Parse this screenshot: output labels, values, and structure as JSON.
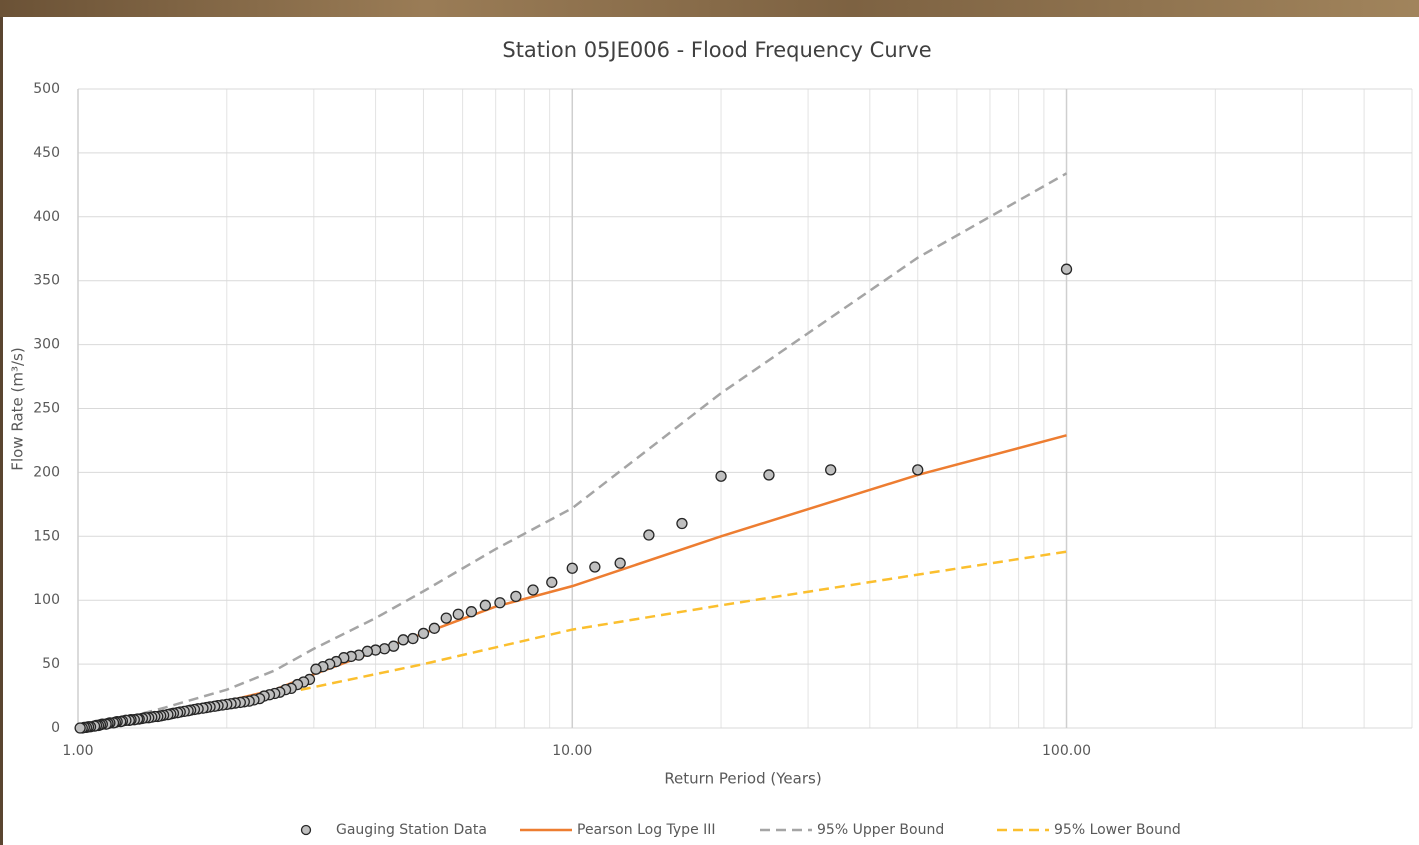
{
  "chart_data": {
    "type": "line",
    "title": "Station 05JE006 - Flood Frequency Curve",
    "x_label": "Return Period (Years)",
    "y_label": "Flow Rate (m³/s)",
    "x_scale": "log",
    "xlim": [
      1,
      500
    ],
    "xticks": [
      {
        "value": 1,
        "label": "1.00"
      },
      {
        "value": 10,
        "label": "10.00"
      },
      {
        "value": 100,
        "label": "100.00"
      }
    ],
    "ylim": [
      0,
      500
    ],
    "yticks": [
      0,
      50,
      100,
      150,
      200,
      250,
      300,
      350,
      400,
      450,
      500
    ],
    "grid": true,
    "legend_position": "bottom",
    "series": [
      {
        "name": "Gauging Station Data",
        "style": "markers",
        "color": "#bfbfbf",
        "x": [
          100,
          50,
          33.33,
          25,
          20,
          16.67,
          14.29,
          12.5,
          11.11,
          10,
          9.09,
          8.33,
          7.69,
          7.14,
          6.67,
          6.25,
          5.88,
          5.56,
          5.26,
          5,
          4.76,
          4.55,
          4.35,
          4.17,
          4,
          3.85,
          3.7,
          3.57,
          3.45,
          3.33,
          3.23,
          3.13,
          3.03,
          2.94,
          2.86,
          2.78,
          2.7,
          2.63,
          2.56,
          2.5,
          2.44,
          2.38,
          2.33,
          2.27,
          2.22,
          2.17,
          2.13,
          2.08,
          2.04,
          2,
          1.96,
          1.92,
          1.89,
          1.85,
          1.82,
          1.79,
          1.75,
          1.72,
          1.69,
          1.67,
          1.64,
          1.61,
          1.59,
          1.56,
          1.54,
          1.52,
          1.49,
          1.47,
          1.45,
          1.43,
          1.41,
          1.39,
          1.37,
          1.35,
          1.33,
          1.32,
          1.3,
          1.28,
          1.27,
          1.25,
          1.23,
          1.22,
          1.2,
          1.19,
          1.18,
          1.16,
          1.15,
          1.14,
          1.12,
          1.11,
          1.1,
          1.09,
          1.08,
          1.06,
          1.05,
          1.04,
          1.03,
          1.02,
          1.01
        ],
        "values": [
          359,
          202,
          202,
          198,
          197,
          160,
          151,
          129,
          126,
          125,
          114,
          108,
          103,
          98,
          96,
          91,
          89,
          86,
          78,
          74,
          70,
          69,
          64,
          62,
          61,
          60,
          57,
          56,
          55,
          52,
          50,
          48,
          46,
          38,
          36,
          34,
          31,
          30,
          28,
          27,
          26,
          25,
          23,
          22,
          21,
          20.5,
          20,
          19.5,
          19,
          18.5,
          18,
          17.5,
          17,
          16.5,
          16,
          15.5,
          15,
          14.5,
          14,
          13.5,
          13,
          12.5,
          12,
          11.5,
          11,
          10.5,
          10,
          9.5,
          9,
          9,
          8.5,
          8,
          8,
          7.5,
          7,
          7,
          6.5,
          6.5,
          6,
          6,
          5.5,
          5,
          5,
          4.5,
          4,
          4,
          3.5,
          3,
          3,
          2.5,
          2,
          2,
          1.5,
          1,
          1,
          0.5,
          0.5,
          0,
          0
        ]
      },
      {
        "name": "Pearson Log Type III",
        "style": "line",
        "color": "#ed7d31",
        "x": [
          1.01,
          1.1,
          1.25,
          1.5,
          2,
          2.5,
          3,
          4,
          5,
          7,
          10,
          20,
          50,
          100
        ],
        "values": [
          0,
          3,
          7,
          12,
          21,
          30,
          42,
          60,
          74,
          95,
          111,
          150,
          198,
          229
        ]
      },
      {
        "name": "95% Upper Bound",
        "style": "dashed",
        "color": "#a5a5a5",
        "x": [
          1.01,
          1.25,
          1.5,
          2,
          2.5,
          3,
          4,
          5,
          7,
          10,
          20,
          50,
          100
        ],
        "values": [
          0,
          8,
          16,
          30,
          45,
          62,
          86,
          107,
          140,
          172,
          262,
          368,
          434
        ]
      },
      {
        "name": "95% Lower Bound",
        "style": "dashed",
        "color": "#fbbf2e",
        "x": [
          1.01,
          1.25,
          1.5,
          2,
          3,
          5,
          10,
          20,
          50,
          100
        ],
        "values": [
          0,
          6,
          11,
          18,
          32,
          50,
          77,
          96,
          120,
          138
        ]
      }
    ]
  }
}
